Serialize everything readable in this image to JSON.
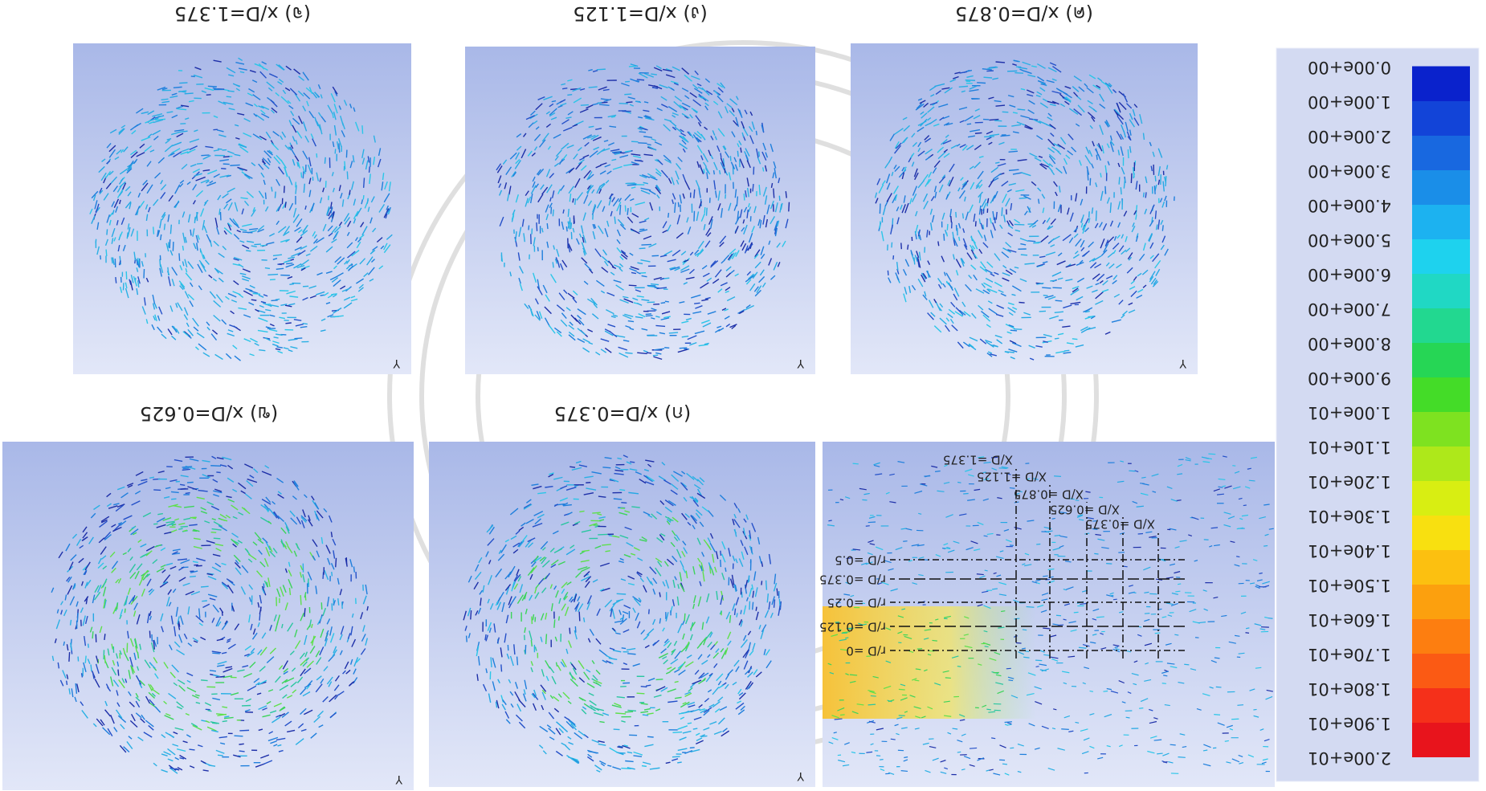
{
  "panels": [
    {
      "label": "(ก) x/D=0.375"
    },
    {
      "label": "(ข) x/D=0.625"
    },
    {
      "label": "(ค) x/D=0.875"
    },
    {
      "label": "(ง) x/D=1.125"
    },
    {
      "label": "(จ) x/D=1.375"
    }
  ],
  "side_view": {
    "x_labels": [
      "X/D =0.375",
      "X/D =0.625",
      "X/D =0.875",
      "X/D =1.125",
      "X/D =1.375"
    ],
    "r_labels": [
      "r/D =0",
      "r/D =0.125",
      "r/D =0.25",
      "r/D =0.375",
      "r/D =0.5"
    ]
  },
  "axis_label": "Y",
  "colorbar": {
    "labels": [
      "2.00e+01",
      "1.90e+01",
      "1.80e+01",
      "1.70e+01",
      "1.60e+01",
      "1.50e+01",
      "1.40e+01",
      "1.30e+01",
      "1.20e+01",
      "1.10e+01",
      "1.00e+01",
      "9.00e+00",
      "8.00e+00",
      "7.00e+00",
      "6.00e+00",
      "5.00e+00",
      "4.00e+00",
      "3.00e+00",
      "2.00e+00",
      "1.00e+00",
      "0.00e+00"
    ],
    "colors": [
      "#e8141c",
      "#f5301a",
      "#fb5a14",
      "#fd7e10",
      "#fca00e",
      "#fcc010",
      "#f8e010",
      "#d8ee12",
      "#aee81a",
      "#7ee220",
      "#44dc28",
      "#26d655",
      "#22d890",
      "#20d8c4",
      "#1ed2ee",
      "#1cb2f0",
      "#1a8ee8",
      "#1868e0",
      "#1244d8",
      "#0a22cc"
    ]
  }
}
